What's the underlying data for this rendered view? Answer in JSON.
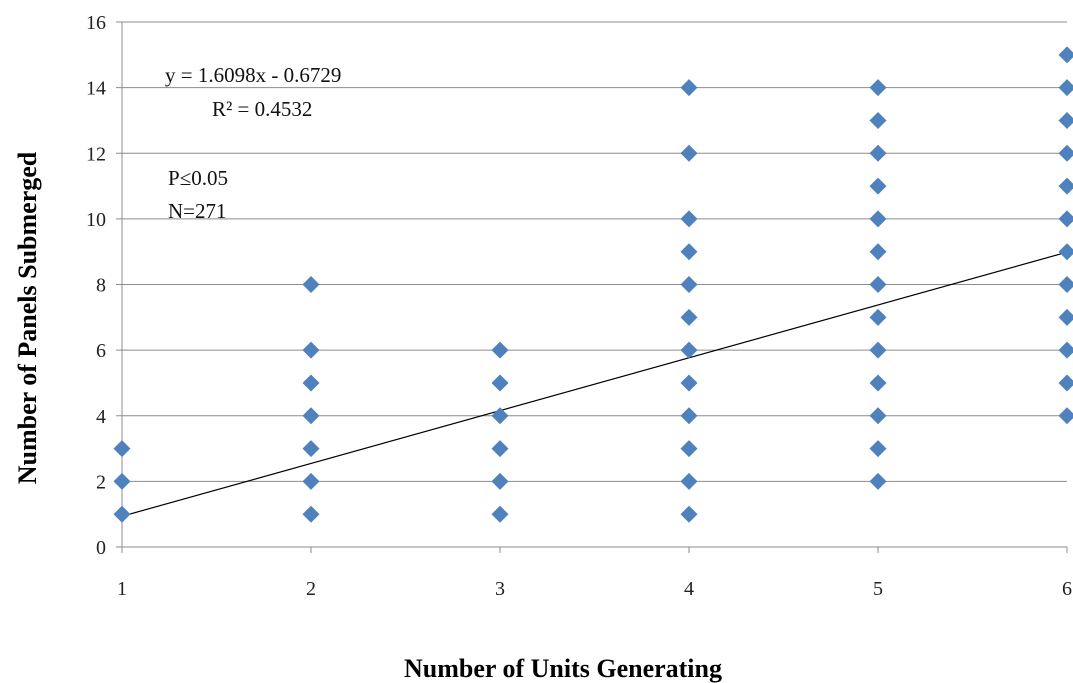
{
  "chart_data": {
    "type": "scatter",
    "title": "",
    "xlabel": "Number of Units Generating",
    "ylabel": "Number of Panels Submerged",
    "xlim": [
      1,
      6
    ],
    "ylim": [
      0,
      16
    ],
    "x_ticks": [
      1,
      2,
      3,
      4,
      5,
      6
    ],
    "y_ticks": [
      0,
      2,
      4,
      6,
      8,
      10,
      12,
      14,
      16
    ],
    "grid": "horizontal",
    "marker": "diamond",
    "marker_color": "#4F81BD",
    "points": [
      {
        "x": 1,
        "y": 1
      },
      {
        "x": 1,
        "y": 2
      },
      {
        "x": 1,
        "y": 3
      },
      {
        "x": 2,
        "y": 1
      },
      {
        "x": 2,
        "y": 2
      },
      {
        "x": 2,
        "y": 3
      },
      {
        "x": 2,
        "y": 4
      },
      {
        "x": 2,
        "y": 5
      },
      {
        "x": 2,
        "y": 6
      },
      {
        "x": 2,
        "y": 8
      },
      {
        "x": 3,
        "y": 1
      },
      {
        "x": 3,
        "y": 2
      },
      {
        "x": 3,
        "y": 3
      },
      {
        "x": 3,
        "y": 4
      },
      {
        "x": 3,
        "y": 5
      },
      {
        "x": 3,
        "y": 6
      },
      {
        "x": 4,
        "y": 1
      },
      {
        "x": 4,
        "y": 2
      },
      {
        "x": 4,
        "y": 3
      },
      {
        "x": 4,
        "y": 4
      },
      {
        "x": 4,
        "y": 5
      },
      {
        "x": 4,
        "y": 6
      },
      {
        "x": 4,
        "y": 7
      },
      {
        "x": 4,
        "y": 8
      },
      {
        "x": 4,
        "y": 9
      },
      {
        "x": 4,
        "y": 10
      },
      {
        "x": 4,
        "y": 12
      },
      {
        "x": 4,
        "y": 14
      },
      {
        "x": 5,
        "y": 2
      },
      {
        "x": 5,
        "y": 3
      },
      {
        "x": 5,
        "y": 4
      },
      {
        "x": 5,
        "y": 5
      },
      {
        "x": 5,
        "y": 6
      },
      {
        "x": 5,
        "y": 7
      },
      {
        "x": 5,
        "y": 8
      },
      {
        "x": 5,
        "y": 9
      },
      {
        "x": 5,
        "y": 10
      },
      {
        "x": 5,
        "y": 11
      },
      {
        "x": 5,
        "y": 12
      },
      {
        "x": 5,
        "y": 13
      },
      {
        "x": 5,
        "y": 14
      },
      {
        "x": 6,
        "y": 4
      },
      {
        "x": 6,
        "y": 5
      },
      {
        "x": 6,
        "y": 6
      },
      {
        "x": 6,
        "y": 7
      },
      {
        "x": 6,
        "y": 8
      },
      {
        "x": 6,
        "y": 9
      },
      {
        "x": 6,
        "y": 10
      },
      {
        "x": 6,
        "y": 11
      },
      {
        "x": 6,
        "y": 12
      },
      {
        "x": 6,
        "y": 13
      },
      {
        "x": 6,
        "y": 14
      },
      {
        "x": 6,
        "y": 15
      }
    ],
    "trendline": {
      "slope": 1.6098,
      "intercept": -0.6729,
      "color": "#000000"
    },
    "annotations": {
      "equation": "y = 1.6098x - 0.6729",
      "r_squared": "R² = 0.4532",
      "p_value": "P≤0.05",
      "n": "N=271"
    }
  }
}
